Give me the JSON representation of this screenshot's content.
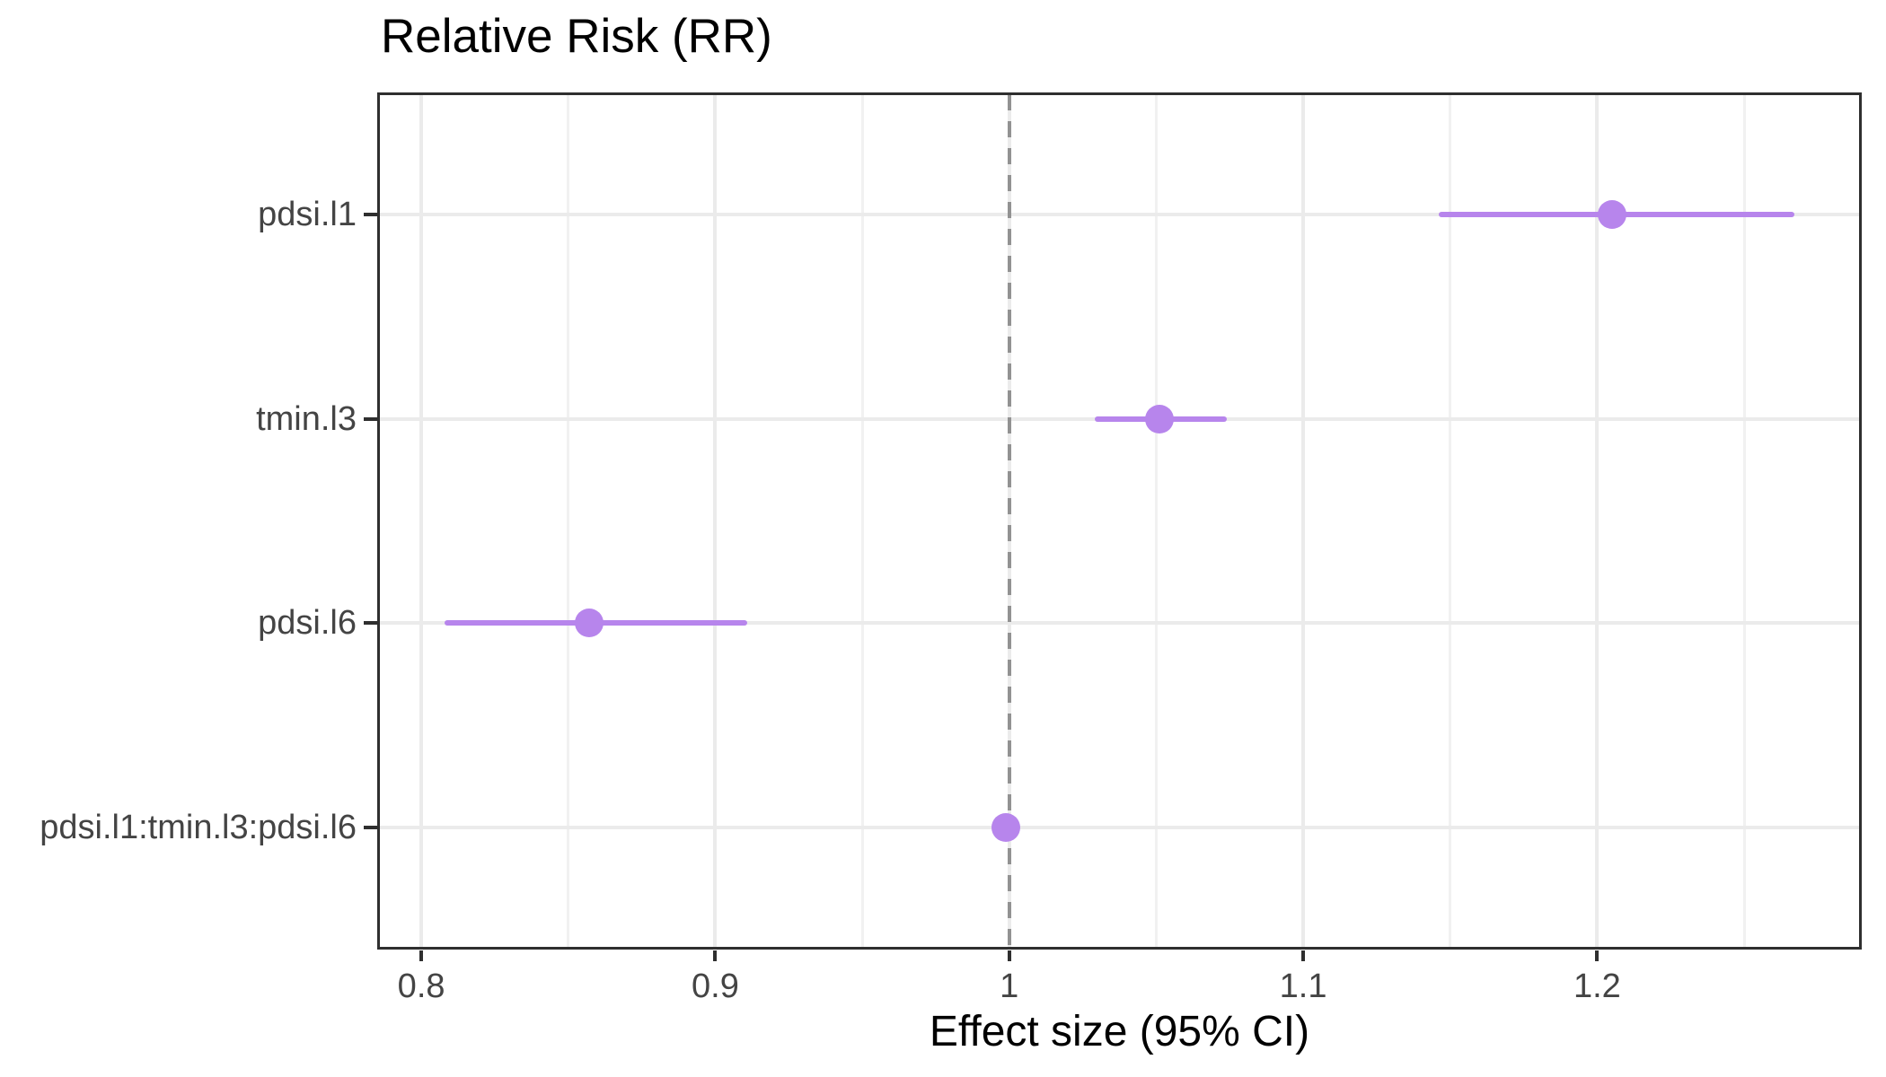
{
  "chart_data": {
    "type": "scatter",
    "subtype": "forest-plot-dot-with-95ci",
    "title": "Relative Risk (RR)",
    "xlabel": "Effect size (95% CI)",
    "ylabel": "",
    "categories": [
      "pdsi.l1",
      "tmin.l3",
      "pdsi.l6",
      "pdsi.l1:tmin.l3:pdsi.l6"
    ],
    "series": [
      {
        "name": "Relative Risk",
        "values": [
          1.205,
          1.051,
          0.857,
          0.999
        ],
        "ci_low": [
          1.146,
          1.029,
          0.808,
          0.995
        ],
        "ci_high": [
          1.267,
          1.074,
          0.911,
          1.003
        ]
      }
    ],
    "x_ticks": [
      0.8,
      0.9,
      1.0,
      1.1,
      1.2
    ],
    "x_tick_labels": [
      "0.8",
      "0.9",
      "1",
      "1.1",
      "1.2"
    ],
    "x_minor_gridlines": [
      0.85,
      0.95,
      1.05,
      1.15,
      1.25
    ],
    "xlim": [
      0.785,
      1.29
    ],
    "reference_line_x": 1.0,
    "reference_line_style": "dashed",
    "grid": "on",
    "legend": "none",
    "background": "#ffffff"
  },
  "style": {
    "accent": "#b785ec",
    "reference_line_color": "#929292",
    "grid_major_color": "#ebebeb",
    "grid_minor_color": "#f1f1f1",
    "panel_border_color": "#2f2f2f",
    "tick_color": "#2f2f2f",
    "tick_label_color": "#444444",
    "title_color": "#000000"
  }
}
